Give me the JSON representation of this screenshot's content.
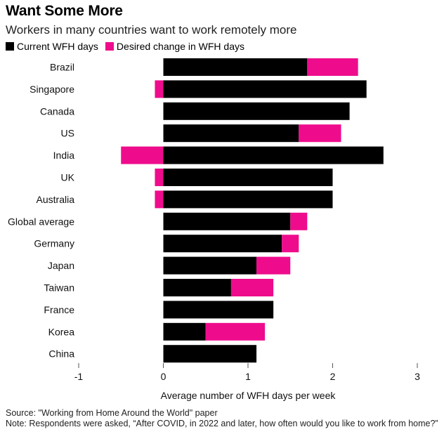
{
  "title": "Want Some More",
  "subtitle": "Workers in many countries want to work remotely more",
  "legend": {
    "current": "Current WFH days",
    "desired": "Desired change in WFH days"
  },
  "colors": {
    "current": "#000000",
    "desired": "#ee0c8c",
    "axis": "#555555"
  },
  "footer": {
    "source": "Source: \"Working from Home Around the World\" paper",
    "note": "Note: Respondents were asked, “After COVID, in 2022 and later, how often would you like to work from home?”"
  },
  "chart_data": {
    "type": "bar",
    "orientation": "horizontal",
    "stacked": true,
    "categories": [
      "Brazil",
      "Singapore",
      "Canada",
      "US",
      "India",
      "UK",
      "Australia",
      "Global average",
      "Germany",
      "Japan",
      "Taiwan",
      "France",
      "Korea",
      "China"
    ],
    "series": [
      {
        "name": "Current WFH days",
        "values": [
          1.7,
          2.4,
          2.2,
          1.6,
          2.6,
          2.0,
          2.0,
          1.5,
          1.4,
          1.1,
          0.8,
          1.3,
          0.5,
          1.1
        ]
      },
      {
        "name": "Desired change in WFH days",
        "values": [
          0.6,
          -0.1,
          0.0,
          0.5,
          -0.5,
          -0.1,
          -0.1,
          0.2,
          0.2,
          0.4,
          0.5,
          0.0,
          0.7,
          0.0
        ]
      }
    ],
    "xlabel": "Average number of WFH days per week",
    "xlim": [
      -1,
      3
    ],
    "xticks": [
      -1,
      0,
      1,
      2,
      3
    ],
    "legend_position": "top-left",
    "grid": false
  }
}
